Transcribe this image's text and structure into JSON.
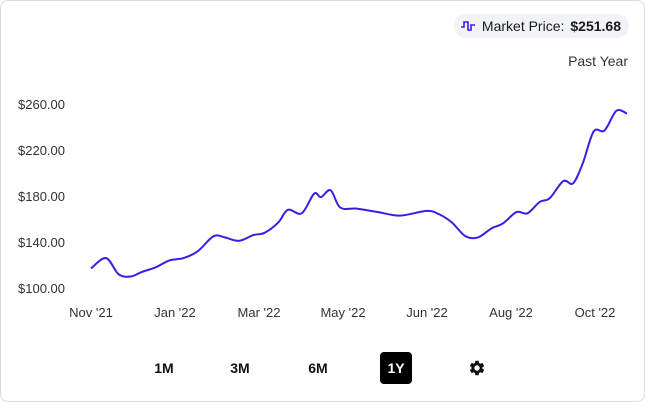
{
  "legend": {
    "label": "Market Price:",
    "value": "$251.68",
    "icon": "line-series-icon",
    "color": "#3d1ce6"
  },
  "range_label": "Past Year",
  "range_buttons": [
    {
      "label": "1M",
      "active": false
    },
    {
      "label": "3M",
      "active": false
    },
    {
      "label": "6M",
      "active": false
    },
    {
      "label": "1Y",
      "active": true
    }
  ],
  "settings_icon": "gear-icon",
  "chart_data": {
    "type": "line",
    "title": "",
    "xlabel": "",
    "ylabel": "",
    "line_color": "#3d1ce6",
    "grid": false,
    "legend_placement": "top-right",
    "ylim": [
      100,
      260
    ],
    "y_ticks": [
      "$260.00",
      "$220.00",
      "$180.00",
      "$140.00",
      "$100.00"
    ],
    "y_tick_values": [
      260,
      220,
      180,
      140,
      100
    ],
    "x_ticks": [
      "Nov '21",
      "Jan '22",
      "Mar '22",
      "May '22",
      "Jun '22",
      "Aug '22",
      "Oct '22"
    ],
    "series": [
      {
        "name": "Market Price",
        "x": [
          "2021-11-01",
          "2021-11-12",
          "2021-11-21",
          "2021-11-30",
          "2021-12-08",
          "2021-12-18",
          "2021-12-28",
          "2022-01-07",
          "2022-01-17",
          "2022-01-28",
          "2022-02-05",
          "2022-02-15",
          "2022-02-25",
          "2022-03-05",
          "2022-03-15",
          "2022-03-22",
          "2022-04-01",
          "2022-04-10",
          "2022-04-15",
          "2022-04-22",
          "2022-04-29",
          "2022-05-06",
          "2022-05-14",
          "2022-05-22",
          "2022-06-01",
          "2022-06-10",
          "2022-06-19",
          "2022-06-29",
          "2022-07-08",
          "2022-07-18",
          "2022-07-26",
          "2022-08-05",
          "2022-08-13",
          "2022-08-22",
          "2022-08-29",
          "2022-09-08",
          "2022-09-15",
          "2022-09-22",
          "2022-09-30",
          "2022-10-09",
          "2022-10-19",
          "2022-10-28"
        ],
        "values": [
          117,
          126,
          112,
          110,
          114,
          118,
          124,
          126,
          132,
          145,
          144,
          141,
          146,
          148,
          157,
          168,
          165,
          182,
          179,
          185,
          170,
          169,
          166,
          163,
          167,
          164,
          157,
          145,
          144,
          152,
          156,
          166,
          165,
          175,
          178,
          193,
          191,
          208,
          236,
          237,
          254,
          251.68
        ]
      }
    ]
  }
}
